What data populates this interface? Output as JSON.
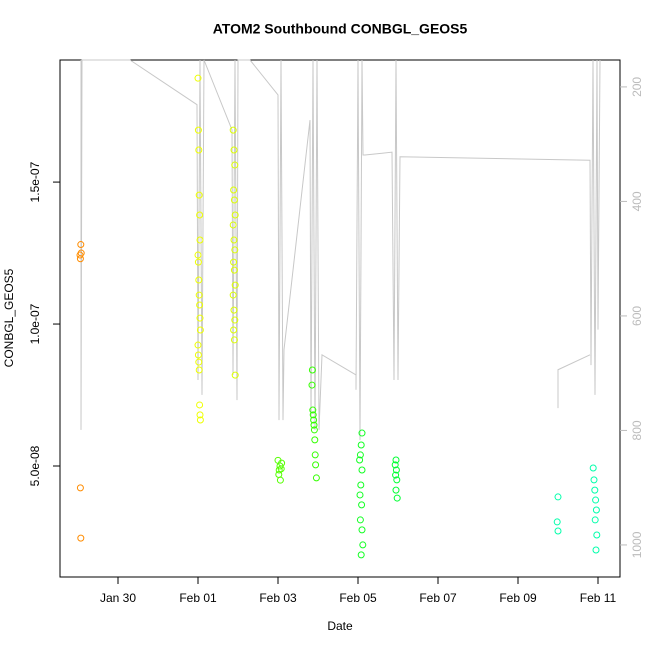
{
  "chart_data": {
    "type": "scatter",
    "title": "ATOM2 Southbound CONBGL_GEOS5",
    "xlabel": "Date",
    "ylabel": "CONBGL_GEOS5",
    "xlim": [
      28.55,
      42.55
    ],
    "xticks": [
      {
        "value": 30,
        "label": "Jan 30"
      },
      {
        "value": 32,
        "label": "Feb 01"
      },
      {
        "value": 34,
        "label": "Feb 03"
      },
      {
        "value": 36,
        "label": "Feb 05"
      },
      {
        "value": 38,
        "label": "Feb 07"
      },
      {
        "value": 40,
        "label": "Feb 09"
      },
      {
        "value": 42,
        "label": "Feb 11"
      }
    ],
    "ylim": [
      1.09e-08,
      1.93e-07
    ],
    "yticks": [
      {
        "value": 5e-08,
        "label": "5.0e-08"
      },
      {
        "value": 1e-07,
        "label": "1.0e-07"
      },
      {
        "value": 1.5e-07,
        "label": "1.5e-07"
      }
    ],
    "y2lim": [
      1056,
      153
    ],
    "y2ticks": [
      200,
      400,
      600,
      800,
      1000
    ],
    "y2color": "#bbbbbb",
    "series": [
      {
        "type": "line",
        "axis": "y2",
        "color": "#c8c8c8",
        "x": [
          29.075,
          29.075,
          29.1,
          30.3,
          31.975,
          32.0,
          32.05,
          32.1,
          32.15,
          32.85,
          32.875,
          32.925,
          32.975,
          33.0,
          33.3,
          34.0,
          34.025,
          34.075,
          34.125,
          34.15,
          34.8,
          34.825,
          34.875,
          34.925,
          34.975,
          35.025,
          35.1,
          35.95,
          35.95,
          36.0,
          36.05,
          36.1,
          36.125,
          36.175,
          36.85,
          36.9,
          36.95,
          37.0,
          37.05,
          41.8,
          41.825,
          41.875,
          41.925,
          41.975,
          42.0,
          42.05,
          null,
          41.0,
          41.0,
          41.8
        ],
        "values": [
          153,
          799,
          153,
          153,
          231,
          712,
          153,
          738,
          153,
          275,
          703,
          153,
          747,
          153,
          153,
          214,
          782,
          153,
          782,
          659,
          258,
          782,
          153,
          799,
          153,
          799,
          668,
          703,
          729,
          153,
          817,
          153,
          319,
          319,
          314,
          712,
          153,
          712,
          322,
          328,
          686,
          153,
          738,
          153,
          624,
          153,
          null,
          761,
          694,
          668
        ]
      },
      {
        "type": "scatter",
        "color": "#ff8c00",
        "x": [
          29.05,
          29.06,
          29.07,
          29.08,
          29.06,
          29.07
        ],
        "values": [
          1.243e-07,
          1.23e-07,
          1.28e-07,
          1.25e-07,
          4.23e-08,
          2.46e-08
        ]
      },
      {
        "type": "scatter",
        "color": "#eeff00",
        "x": [
          32.0,
          32.01,
          32.02,
          32.03,
          32.04,
          32.05,
          32.0,
          32.01,
          32.02,
          32.03,
          32.04,
          32.05,
          32.06,
          32.0,
          32.01,
          32.02,
          32.03,
          32.04,
          32.05,
          32.06
        ],
        "values": [
          1.866e-07,
          1.683e-07,
          1.613e-07,
          1.454e-07,
          1.384e-07,
          1.296e-07,
          1.243e-07,
          1.218e-07,
          1.155e-07,
          1.102e-07,
          1.067e-07,
          1.021e-07,
          9.79e-08,
          9.26e-08,
          8.91e-08,
          8.66e-08,
          8.38e-08,
          7.15e-08,
          6.8e-08,
          6.62e-08
        ]
      },
      {
        "type": "scatter",
        "color": "#ddff00",
        "x": [
          32.88,
          32.9,
          32.92,
          32.89,
          32.91,
          32.93,
          32.88,
          32.9,
          32.92,
          32.89,
          32.91,
          32.93,
          32.88,
          32.9,
          32.92,
          32.89,
          32.91,
          32.93
        ],
        "values": [
          1.683e-07,
          1.613e-07,
          1.56e-07,
          1.472e-07,
          1.437e-07,
          1.384e-07,
          1.349e-07,
          1.296e-07,
          1.261e-07,
          1.218e-07,
          1.19e-07,
          1.137e-07,
          1.102e-07,
          1.049e-07,
          1.014e-07,
          9.79e-08,
          9.44e-08,
          8.2e-08
        ]
      },
      {
        "type": "scatter",
        "color": "#55ff00",
        "x": [
          34.0,
          34.03,
          34.06,
          34.09,
          34.02,
          34.05,
          34.08
        ],
        "values": [
          5.2e-08,
          4.86e-08,
          4.5e-08,
          5.1e-08,
          4.7e-08,
          5e-08,
          4.9e-08
        ]
      },
      {
        "type": "scatter",
        "color": "#33ff00",
        "x": [
          34.86,
          34.85,
          34.87,
          34.88,
          34.89,
          34.9,
          34.91,
          34.92,
          34.93,
          34.94,
          34.96
        ],
        "values": [
          8.38e-08,
          7.85e-08,
          6.97e-08,
          6.8e-08,
          6.62e-08,
          6.44e-08,
          6.27e-08,
          5.92e-08,
          5.39e-08,
          5.04e-08,
          4.58e-08
        ]
      },
      {
        "type": "scatter",
        "color": "#11ff22",
        "x": [
          36.1,
          36.08,
          36.06,
          36.04,
          36.1,
          36.07,
          36.05,
          36.09,
          36.06,
          36.1,
          36.12,
          36.08
        ],
        "values": [
          6.16e-08,
          5.74e-08,
          5.39e-08,
          5.21e-08,
          4.86e-08,
          4.33e-08,
          3.98e-08,
          3.63e-08,
          3.1e-08,
          2.75e-08,
          2.22e-08,
          1.87e-08
        ]
      },
      {
        "type": "scatter",
        "color": "#00ff33",
        "x": [
          36.95,
          36.93,
          36.96,
          36.94,
          36.97,
          36.95,
          36.98
        ],
        "values": [
          5.21e-08,
          5.04e-08,
          4.86e-08,
          4.68e-08,
          4.51e-08,
          4.15e-08,
          3.87e-08
        ]
      },
      {
        "type": "scatter",
        "color": "#00ffaa",
        "x": [
          41.0,
          40.98,
          41.0,
          41.88,
          41.9,
          41.92,
          41.94,
          41.96,
          41.93,
          41.97,
          41.95
        ],
        "values": [
          3.91e-08,
          3.03e-08,
          2.71e-08,
          4.93e-08,
          4.51e-08,
          4.15e-08,
          3.8e-08,
          3.45e-08,
          3.1e-08,
          2.57e-08,
          2.04e-08
        ]
      }
    ]
  }
}
